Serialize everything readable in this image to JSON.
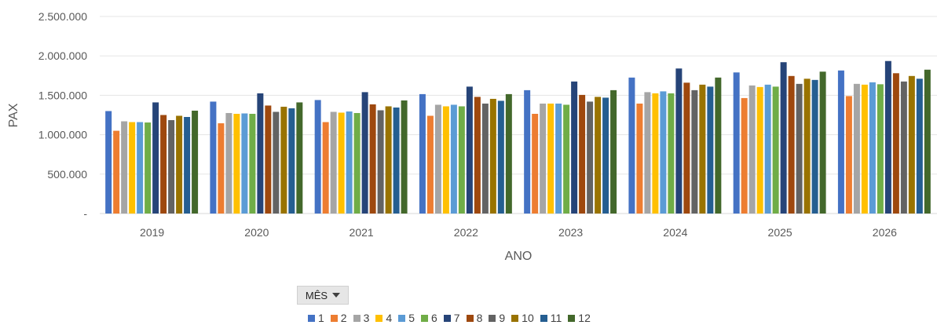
{
  "chart_data": {
    "type": "bar",
    "xlabel": "ANO",
    "ylabel": "PAX",
    "ylim": [
      0,
      2500000
    ],
    "y_ticks": [
      "-",
      "500.000",
      "1.000.000",
      "1.500.000",
      "2.000.000",
      "2.500.000"
    ],
    "y_tick_values": [
      0,
      500000,
      1000000,
      1500000,
      2000000,
      2500000
    ],
    "grid": true,
    "categories": [
      "2019",
      "2020",
      "2021",
      "2022",
      "2023",
      "2024",
      "2025",
      "2026"
    ],
    "series": [
      {
        "name": "1",
        "color": "#4472c4",
        "values": [
          1300000,
          1420000,
          1440000,
          1515000,
          1565000,
          1725000,
          1790000,
          1815000
        ]
      },
      {
        "name": "2",
        "color": "#ed7d31",
        "values": [
          1050000,
          1145000,
          1160000,
          1240000,
          1265000,
          1395000,
          1465000,
          1490000
        ]
      },
      {
        "name": "3",
        "color": "#a5a5a5",
        "values": [
          1170000,
          1275000,
          1290000,
          1380000,
          1395000,
          1540000,
          1625000,
          1645000
        ]
      },
      {
        "name": "4",
        "color": "#ffc000",
        "values": [
          1160000,
          1265000,
          1280000,
          1360000,
          1395000,
          1525000,
          1605000,
          1635000
        ]
      },
      {
        "name": "5",
        "color": "#5b9bd5",
        "values": [
          1160000,
          1270000,
          1295000,
          1380000,
          1395000,
          1550000,
          1635000,
          1665000
        ]
      },
      {
        "name": "6",
        "color": "#70ad47",
        "values": [
          1155000,
          1265000,
          1275000,
          1360000,
          1380000,
          1525000,
          1610000,
          1640000
        ]
      },
      {
        "name": "7",
        "color": "#264478",
        "values": [
          1410000,
          1525000,
          1540000,
          1610000,
          1675000,
          1840000,
          1920000,
          1935000
        ]
      },
      {
        "name": "8",
        "color": "#9e480e",
        "values": [
          1250000,
          1370000,
          1385000,
          1480000,
          1505000,
          1660000,
          1745000,
          1780000
        ]
      },
      {
        "name": "9",
        "color": "#636363",
        "values": [
          1185000,
          1290000,
          1310000,
          1395000,
          1420000,
          1565000,
          1645000,
          1675000
        ]
      },
      {
        "name": "10",
        "color": "#997300",
        "values": [
          1240000,
          1355000,
          1360000,
          1455000,
          1480000,
          1635000,
          1710000,
          1745000
        ]
      },
      {
        "name": "11",
        "color": "#255e91",
        "values": [
          1225000,
          1335000,
          1345000,
          1430000,
          1470000,
          1610000,
          1695000,
          1710000
        ]
      },
      {
        "name": "12",
        "color": "#43682b",
        "values": [
          1305000,
          1410000,
          1435000,
          1515000,
          1565000,
          1725000,
          1800000,
          1825000
        ]
      }
    ]
  },
  "filter": {
    "label": "MÊS",
    "icon": "dropdown-caret-icon"
  }
}
